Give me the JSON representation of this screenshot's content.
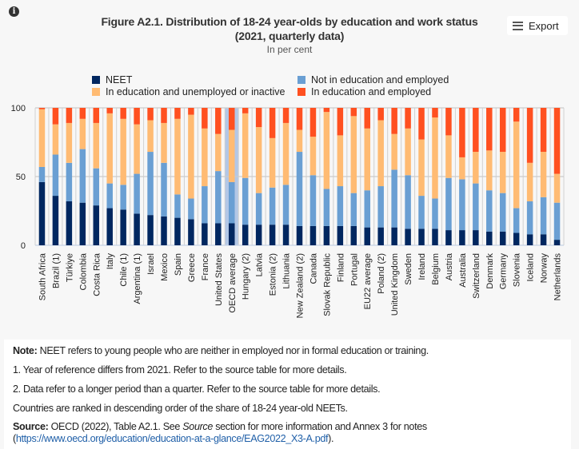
{
  "header": {
    "title_line1": "Figure A2.1. Distribution of 18-24 year-olds by education and work status",
    "title_line2": "(2021, quarterly data)",
    "subtitle": "In per cent",
    "export_label": "Export",
    "info_icon": "info-icon",
    "menu_icon": "hamburger-icon"
  },
  "chart_data": {
    "type": "bar",
    "stacked": true,
    "title": "Figure A2.1. Distribution of 18-24 year-olds by education and work status (2021, quarterly data)",
    "ylabel": "In per cent",
    "ylim": [
      0,
      100
    ],
    "yticks": [
      "0",
      "50",
      "100"
    ],
    "legend_position": "top",
    "highlighted_category": "OECD average",
    "categories": [
      "South Africa",
      "Brazil (1)",
      "Türkiye",
      "Colombia",
      "Costa Rica",
      "Italy",
      "Chile (1)",
      "Argentina (1)",
      "Israel",
      "Mexico",
      "Spain",
      "Greece",
      "France",
      "United States",
      "OECD average",
      "Hungary (2)",
      "Latvia",
      "Estonia (2)",
      "Lithuania",
      "New Zealand (2)",
      "Canada",
      "Slovak Republic",
      "Finland",
      "Portugal",
      "EU22 average",
      "Poland (2)",
      "United Kingdom",
      "Sweden",
      "Ireland",
      "Belgium",
      "Austria",
      "Australia",
      "Switzerland",
      "Denmark",
      "Germany",
      "Slovenia",
      "Iceland",
      "Norway",
      "Netherlands"
    ],
    "series": [
      {
        "name": "NEET",
        "color": "#002760",
        "values": [
          46,
          36,
          32,
          31,
          29,
          27,
          26,
          23,
          22,
          21,
          20,
          19,
          16,
          16,
          16,
          15,
          15,
          15,
          15,
          14,
          14,
          14,
          14,
          14,
          13,
          13,
          13,
          12,
          12,
          12,
          11,
          11,
          11,
          10,
          10,
          9,
          8,
          8,
          4
        ]
      },
      {
        "name": "Not in education and employed",
        "color": "#6a9fd3",
        "values": [
          11,
          30,
          28,
          39,
          27,
          18,
          18,
          29,
          46,
          39,
          17,
          15,
          27,
          38,
          30,
          34,
          23,
          27,
          29,
          54,
          37,
          27,
          29,
          24,
          27,
          30,
          42,
          39,
          24,
          22,
          38,
          37,
          34,
          30,
          28,
          18,
          24,
          27,
          27
        ]
      },
      {
        "name": "In education and unemployed or inactive",
        "color": "#ffbb73",
        "values": [
          42,
          22,
          29,
          22,
          33,
          51,
          48,
          36,
          23,
          29,
          55,
          61,
          42,
          27,
          38,
          47,
          48,
          36,
          45,
          16,
          28,
          56,
          37,
          56,
          45,
          48,
          26,
          34,
          41,
          59,
          31,
          16,
          23,
          29,
          30,
          63,
          28,
          33,
          21
        ]
      },
      {
        "name": "In education and employed",
        "color": "#ff5020",
        "values": [
          1,
          12,
          11,
          8,
          11,
          4,
          8,
          12,
          9,
          11,
          8,
          5,
          15,
          19,
          16,
          4,
          14,
          22,
          11,
          16,
          21,
          3,
          20,
          6,
          15,
          9,
          19,
          15,
          23,
          7,
          20,
          36,
          32,
          31,
          32,
          10,
          40,
          32,
          48
        ]
      }
    ]
  },
  "notes": {
    "note_label": "Note:",
    "note_text": " NEET refers to young people who are neither in employed nor in formal education or training.",
    "footnote1": "1. Year of reference differs from 2021. Refer to the source table for more details.",
    "footnote2": "2. Data refer to a longer period than a quarter. Refer to the source table for more details.",
    "ranking": "Countries are ranked in descending order of the share of 18-24 year-old NEETs.",
    "source_label": "Source:",
    "source_text1": " OECD (2022), Table A2.1. See ",
    "source_italic": "Source",
    "source_text2": " section for more information and Annex 3 for notes",
    "source_open": "(",
    "source_link": "https://www.oecd.org/education/education-at-a-glance/EAG2022_X3-A.pdf",
    "source_close": ")."
  }
}
